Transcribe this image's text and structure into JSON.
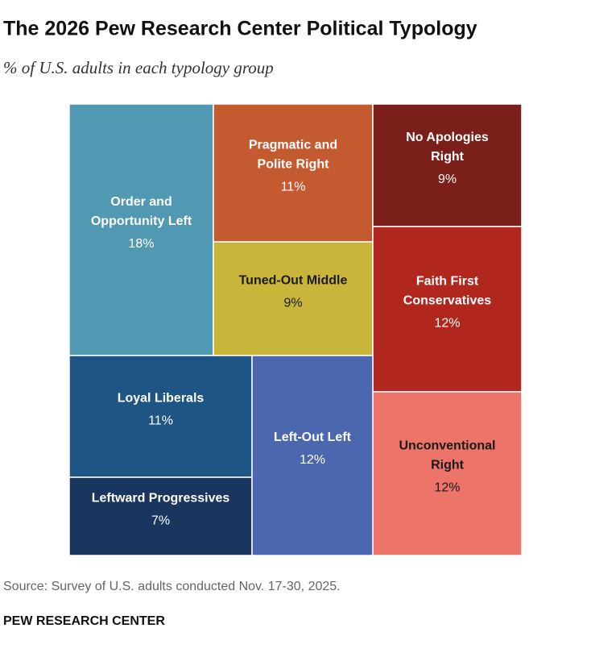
{
  "chart_data": {
    "type": "treemap",
    "title": "The 2026 Pew Research Center Political Typology",
    "subtitle": "% of U.S. adults in each typology group",
    "categories": [
      [
        "Order and",
        "Opportunity Left"
      ],
      [
        "Pragmatic and",
        "Polite Right"
      ],
      [
        "Tuned-Out Middle"
      ],
      [
        "No Apologies",
        "Right"
      ],
      [
        "Faith First",
        "Conservatives"
      ],
      [
        "Unconventional",
        "Right"
      ],
      [
        "Loyal Liberals"
      ],
      [
        "Leftward Progressives"
      ],
      [
        "Left-Out Left"
      ]
    ],
    "values": [
      18,
      11,
      9,
      9,
      12,
      12,
      11,
      7,
      12
    ],
    "value_labels": [
      "18%",
      "11%",
      "9%",
      "9%",
      "12%",
      "12%",
      "11%",
      "7%",
      "12%"
    ],
    "colors": [
      "#5199b2",
      "#c45a2f",
      "#c8b53a",
      "#7a1f1a",
      "#b1271e",
      "#ec7468",
      "#1e5585",
      "#1b365e",
      "#4a67b0"
    ],
    "label_colors": [
      "#ffffff",
      "#ffffff",
      "#1a1a1a",
      "#ffffff",
      "#ffffff",
      "#1a1a1a",
      "#ffffff",
      "#ffffff",
      "#ffffff"
    ],
    "source": "Source: Survey of U.S. adults conducted Nov. 17-30, 2025.",
    "credit": "PEW RESEARCH CENTER"
  }
}
